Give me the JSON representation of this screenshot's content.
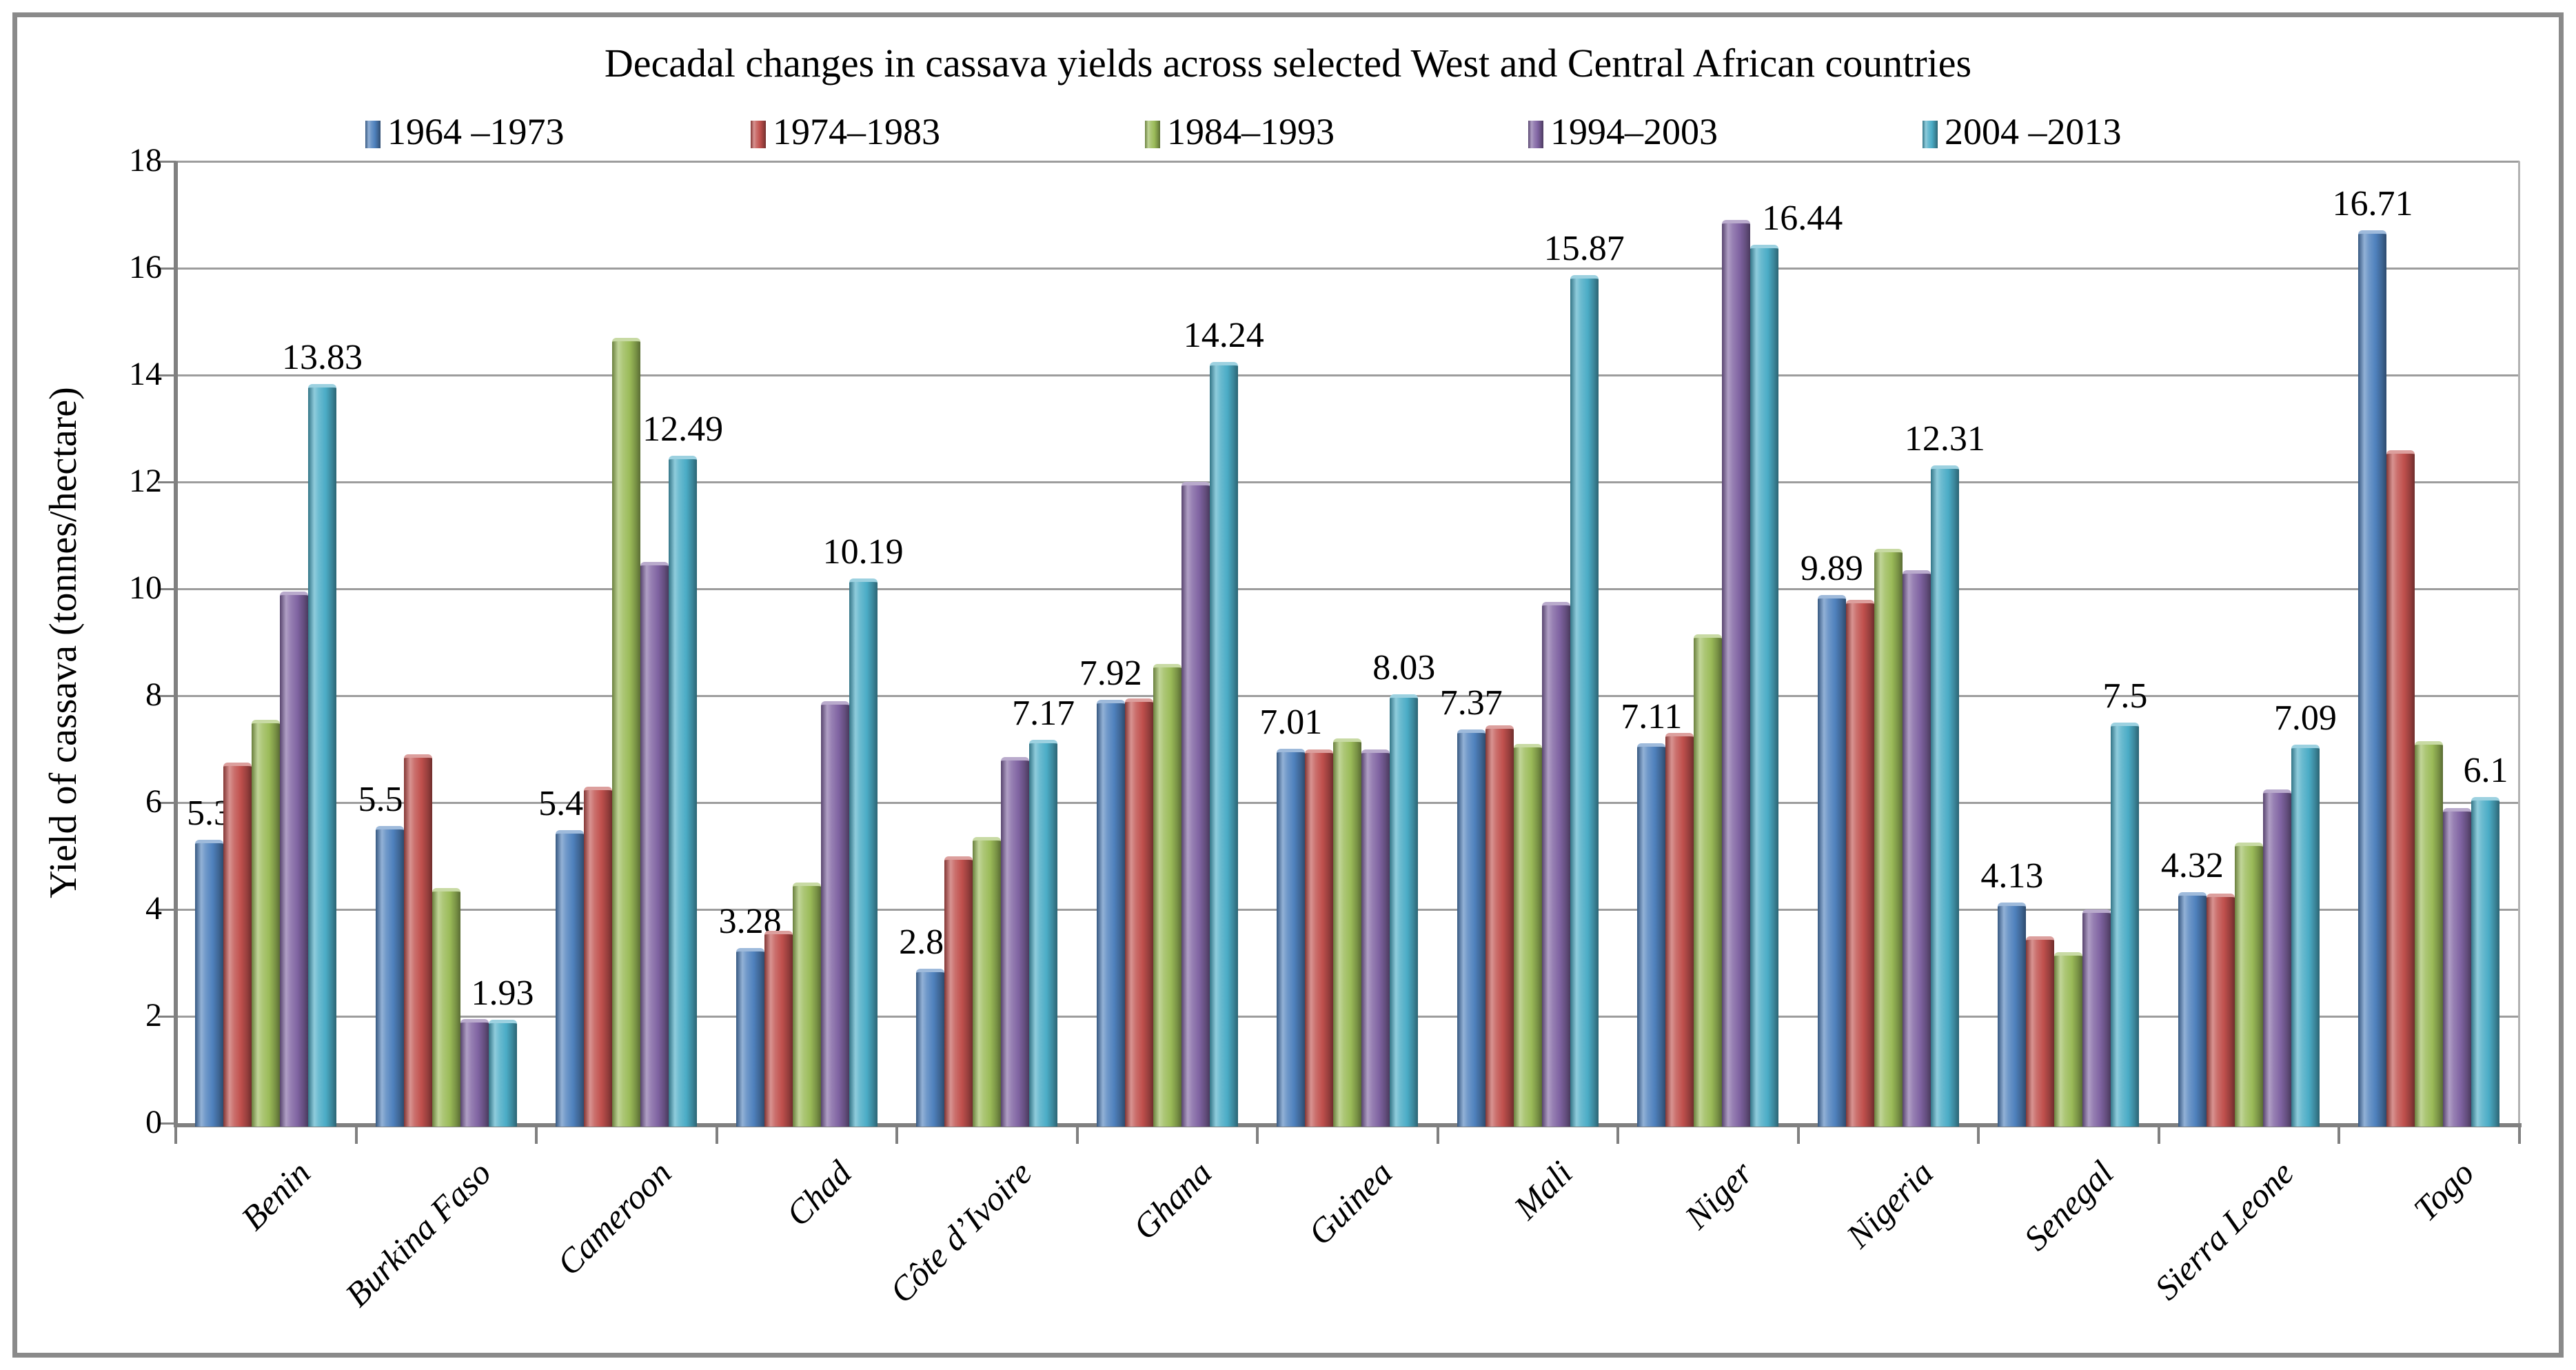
{
  "figure": {
    "title": "Decadal changes in cassava yields across selected West and Central African countries"
  },
  "y_axis": {
    "label": "Yield of cassava (tonnes/hectare)",
    "ticks": [
      0,
      2,
      4,
      6,
      8,
      10,
      12,
      14,
      16,
      18
    ]
  },
  "legend": {
    "items": [
      {
        "label": "1964 –1973",
        "color": "#4F81BD"
      },
      {
        "label": "1974–1983",
        "color": "#C0504D"
      },
      {
        "label": "1984–1993",
        "color": "#9BBB59"
      },
      {
        "label": "1994–2003",
        "color": "#8064A2"
      },
      {
        "label": "2004 –2013",
        "color": "#4BACC6"
      }
    ]
  },
  "chart_data": {
    "type": "bar",
    "title": "Decadal changes in cassava yields across selected West and Central African countries",
    "xlabel": "",
    "ylabel": "Yield of cassava (tonnes/hectare)",
    "ylim": [
      0,
      18
    ],
    "y_tick_step": 2,
    "grid": true,
    "legend_position": "top",
    "categories": [
      "Benin",
      "Burkina Faso",
      "Cameroon",
      "Chad",
      "Côte d’Ivoire",
      "Ghana",
      "Guinea",
      "Mali",
      "Niger",
      "Nigeria",
      "Senegal",
      "Sierra Leone",
      "Togo"
    ],
    "series": [
      {
        "name": "1964 –1973",
        "color": "#4F81BD",
        "values": [
          5.3,
          5.56,
          5.48,
          3.28,
          2.89,
          7.92,
          7.01,
          7.37,
          7.11,
          9.89,
          4.13,
          4.32,
          16.71
        ],
        "data_labels": [
          "5.3",
          "5.56",
          "5.48",
          "3.28",
          "2.89",
          "7.92",
          "7.01",
          "7.37",
          "7.11",
          "9.89",
          "4.13",
          "4.32",
          "16.71"
        ],
        "label_dx": [
          0,
          0,
          0,
          0,
          0,
          0,
          0,
          0,
          0,
          0,
          0,
          0,
          0
        ]
      },
      {
        "name": "1974–1983",
        "color": "#C0504D",
        "values": [
          6.75,
          6.9,
          6.3,
          3.6,
          5.0,
          7.95,
          7.0,
          7.45,
          7.3,
          9.8,
          3.5,
          4.3,
          12.6
        ]
      },
      {
        "name": "1984–1993",
        "color": "#9BBB59",
        "values": [
          7.55,
          4.4,
          14.7,
          4.5,
          5.35,
          8.6,
          7.2,
          7.1,
          9.15,
          10.75,
          3.2,
          5.25,
          7.15
        ]
      },
      {
        "name": "1994–2003",
        "color": "#8064A2",
        "values": [
          9.95,
          1.95,
          10.5,
          7.9,
          6.85,
          12.0,
          7.0,
          9.75,
          16.9,
          10.35,
          4.0,
          6.25,
          5.9
        ]
      },
      {
        "name": "2004 –2013",
        "color": "#4BACC6",
        "values": [
          13.83,
          1.93,
          12.49,
          10.19,
          7.17,
          14.24,
          8.03,
          15.87,
          16.44,
          12.31,
          7.5,
          7.09,
          6.1
        ],
        "data_labels": [
          "13.83",
          "1.93",
          "12.49",
          "10.19",
          "7.17",
          "14.24",
          "8.03",
          "15.87",
          "16.44",
          "12.31",
          "7.5",
          "7.09",
          "6.1"
        ],
        "label_dx": [
          0,
          0,
          0,
          0,
          0,
          0,
          0,
          0,
          55,
          0,
          0,
          0,
          0
        ]
      }
    ]
  }
}
